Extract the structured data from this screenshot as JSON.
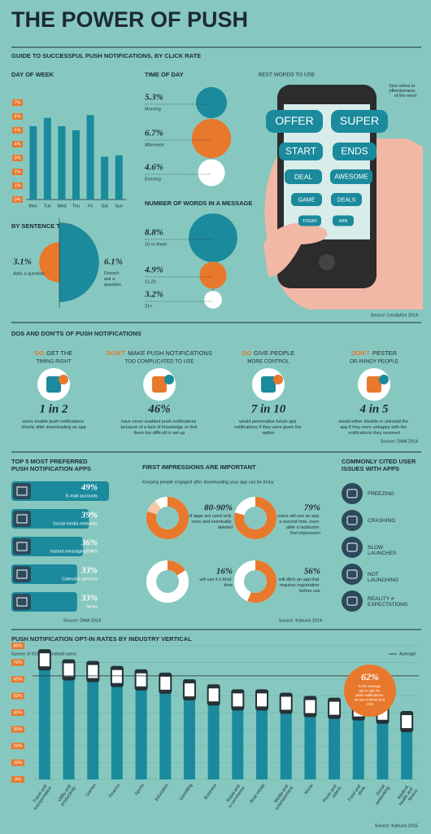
{
  "title": "THE POWER OF PUSH",
  "guide_heading": "GUIDE TO SUCCESSFUL PUSH NOTIFICATIONS, BY CLICK RATE",
  "chart_data": [
    {
      "type": "bar",
      "title": "DAY OF WEEK",
      "categories": [
        "Mon",
        "Tue",
        "Wed",
        "Thu",
        "Fri",
        "Sat",
        "Sun"
      ],
      "values": [
        5.3,
        5.9,
        5.3,
        5.0,
        6.1,
        3.1,
        3.2
      ],
      "color": "#1b8a9c",
      "ylim": [
        0,
        7
      ],
      "yticks": [
        {
          "value": 0,
          "label": "0%"
        },
        {
          "value": 1,
          "label": "1%"
        },
        {
          "value": 2,
          "label": "2%"
        },
        {
          "value": 3,
          "label": "3%"
        },
        {
          "value": 4,
          "label": "4%"
        },
        {
          "value": 5,
          "label": "5%"
        },
        {
          "value": 6,
          "label": "6%"
        },
        {
          "value": 7,
          "label": "7%"
        }
      ]
    },
    {
      "type": "bubble",
      "title": "TIME OF DAY",
      "categories": [
        "Morning",
        "Afternoon",
        "Evening"
      ],
      "values": [
        5.3,
        6.7,
        4.6
      ],
      "value_labels": [
        "5.3%",
        "6.7%",
        "4.6%"
      ],
      "colors": [
        "#1b8a9c",
        "#e8782c",
        "#ffffff"
      ]
    },
    {
      "type": "half-circle",
      "title": "BY SENTENCE TYPE",
      "categories": [
        "Asks a question",
        "Doesn't ask a question"
      ],
      "values": [
        3.1,
        6.1
      ],
      "value_labels": [
        "3.1%",
        "6.1%"
      ],
      "colors": [
        "#e8782c",
        "#1b8a9c"
      ]
    },
    {
      "type": "bubble",
      "title": "NUMBER OF WORDS IN A MESSAGE",
      "categories": [
        "10 or fewer",
        "11-20",
        "21+"
      ],
      "values": [
        8.8,
        4.9,
        3.2
      ],
      "value_labels": [
        "8.8%",
        "4.9%",
        "3.2%"
      ],
      "colors": [
        "#1b8a9c",
        "#e8782c",
        "#ffffff"
      ]
    },
    {
      "type": "hbar",
      "title": "TOP 5 MOST PREFERRED PUSH NOTIFICATION APPS",
      "categories": [
        "E-mail accounts",
        "Social media networks",
        "Instant messaging/SMS",
        "Calendar services",
        "News"
      ],
      "values": [
        49,
        39,
        36,
        33,
        33
      ],
      "value_labels": [
        "49%",
        "39%",
        "36%",
        "33%",
        "33%"
      ],
      "color": "#1b8a9c",
      "source": "Source: DMA 2014"
    },
    {
      "type": "phone-bar",
      "title": "PUSH NOTIFICATION OPT-IN RATES BY INDUSTRY VERTICAL",
      "subtitle": "Survey of iOS and Android users",
      "categories": [
        "Travel and transportation",
        "Utility and productivity",
        "Games",
        "Finance",
        "Sports",
        "Education",
        "Gambling",
        "Business",
        "Retail and e-commerce",
        "Real estate",
        "Media and entertainment",
        "Music",
        "Photo and videos",
        "Food and drink",
        "Social networking",
        "Medical, health and fitness"
      ],
      "values": [
        77,
        71,
        70,
        67,
        65,
        63,
        59,
        56,
        53,
        53,
        51,
        49,
        48,
        47,
        45,
        40
      ],
      "color": "#1b8a9c",
      "ylim": [
        0,
        80
      ],
      "yticks": [
        {
          "value": 0,
          "label": "0%"
        },
        {
          "value": 10,
          "label": "10%"
        },
        {
          "value": 20,
          "label": "20%"
        },
        {
          "value": 30,
          "label": "30%"
        },
        {
          "value": 40,
          "label": "40%"
        },
        {
          "value": 50,
          "label": "50%"
        },
        {
          "value": 60,
          "label": "60%"
        },
        {
          "value": 70,
          "label": "70%"
        },
        {
          "value": 80,
          "label": "80%"
        }
      ],
      "average": 62,
      "average_legend": "Average",
      "average_value_label": "62%",
      "average_note": "is the average opt-in rate for push notifications across Android and iOS",
      "source": "Source: Kahuna 2015"
    }
  ],
  "best_words": {
    "title": "BEST WORDS TO USE",
    "note": "Size refers to effectiveness of the word",
    "words": [
      "OFFER",
      "SUPER",
      "START",
      "ENDS",
      "DEAL",
      "AWESOME",
      "GAME",
      "DEALS",
      "TODAY",
      "WIN"
    ],
    "source": "Source: Localytics 2014"
  },
  "dos": {
    "title": "DOS AND DON'TS OF PUSH NOTIFICATIONS",
    "source": "Source: DMA 2014",
    "items": [
      {
        "lead": "DO",
        "heading": "GET THE",
        "heading2": "TIMING RIGHT",
        "stat": "1 in 2",
        "desc": "users enable push notifications shortly after downloading an app"
      },
      {
        "lead": "DON'T",
        "heading": "MAKE PUSH NOTIFICATIONS",
        "heading2": "TOO COMPLICATED TO USE",
        "stat": "46%",
        "desc": "have never enabled push notifications because of a lack of knowledge or find them too difficult to set up"
      },
      {
        "lead": "DO",
        "heading": "GIVE PEOPLE",
        "heading2": "MORE CONTROL",
        "stat": "7 in 10",
        "desc": "would personalise future app notifications if they were given the option"
      },
      {
        "lead": "DON'T",
        "heading": "PESTER",
        "heading2": "OR ANNOY PEOPLE",
        "stat": "4 in 5",
        "desc": "would either disable or uninstall the app if they were unhappy with the notifications they received"
      }
    ]
  },
  "first_impressions": {
    "title": "FIRST IMPRESSIONS ARE IMPORTANT",
    "subtitle": "Keeping people engaged after downloading your app can be tricky",
    "source": "Source: Kahuna 2014",
    "items": [
      {
        "range": [
          80,
          90
        ],
        "value_label": "80-90%",
        "desc": "of apps are used only once and eventually deleted"
      },
      {
        "value": 79,
        "value_label": "79%",
        "desc": "users will use an app a second time, even after a lacklustre first impression"
      },
      {
        "value": 16,
        "value_label": "16%",
        "desc": "will use it a third time"
      },
      {
        "value": 56,
        "value_label": "56%",
        "desc": "will ditch an app that requires registration before use"
      }
    ]
  },
  "issues": {
    "title": "COMMONLY CITED USER ISSUES WITH APPS",
    "items": [
      "FREEZING",
      "CRASHING",
      "SLOW LAUNCHES",
      "NOT LAUNCHING",
      "REALITY ≠ EXPECTATIONS"
    ]
  }
}
